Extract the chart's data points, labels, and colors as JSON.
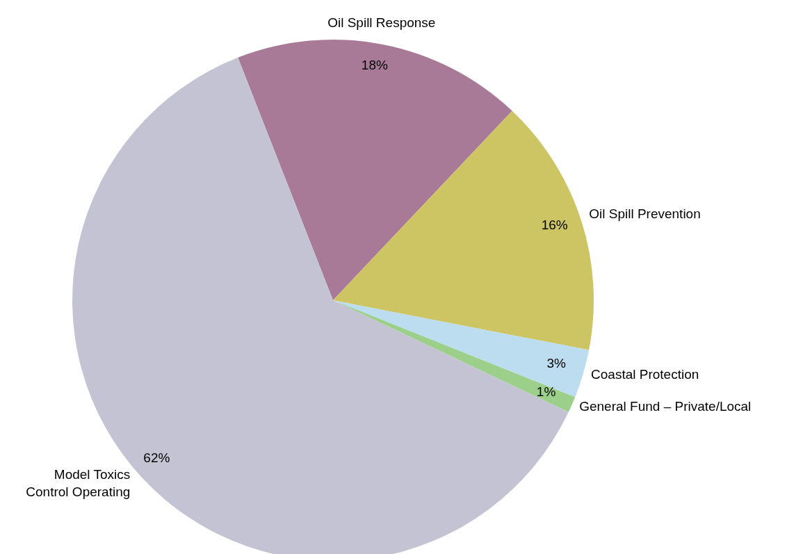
{
  "chart_data": {
    "type": "pie",
    "categories": [
      "Oil Spill Response",
      "Oil Spill Prevention",
      "Coastal Protection",
      "General Fund – Private/Local",
      "Model Toxics Control Operating"
    ],
    "values": [
      18,
      16,
      3,
      1,
      62
    ],
    "value_labels": [
      "18%",
      "16%",
      "3%",
      "1%",
      "62%"
    ],
    "colors": [
      "#a87a98",
      "#cdc463",
      "#bcdcef",
      "#9ccf8a",
      "#c4c3d3"
    ],
    "legend": false
  }
}
